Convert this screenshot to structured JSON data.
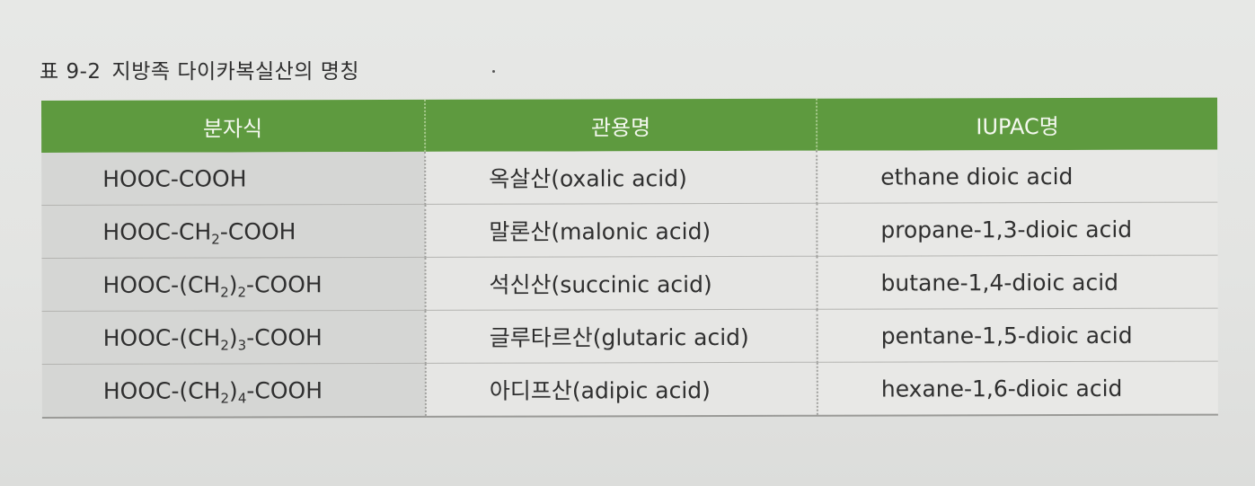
{
  "caption": {
    "number": "표 9-2",
    "title": "지방족 다이카복실산의 명칭"
  },
  "table": {
    "headers": [
      "분자식",
      "관용명",
      "IUPAC명"
    ],
    "rows": [
      {
        "formula": {
          "pre": "HOOC-COOH",
          "sub": "",
          "post": ""
        },
        "common": "옥살산(oxalic acid)",
        "iupac": "ethane dioic acid"
      },
      {
        "formula": {
          "pre": "HOOC-CH",
          "sub": "2",
          "post": "-COOH"
        },
        "common": "말론산(malonic acid)",
        "iupac": "propane-1,3-dioic acid"
      },
      {
        "formula": {
          "pre": "HOOC-(CH",
          "sub": "2",
          "post": ")2-COOH"
        },
        "common": "석신산(succinic acid)",
        "iupac": "butane-1,4-dioic acid"
      },
      {
        "formula": {
          "pre": "HOOC-(CH",
          "sub": "2",
          "post": ")3-COOH"
        },
        "common": "글루타르산(glutaric acid)",
        "iupac": "pentane-1,5-dioic acid"
      },
      {
        "formula": {
          "pre": "HOOC-(CH",
          "sub": "2",
          "post": ")4-COOH"
        },
        "common": "아디프산(adipic acid)",
        "iupac": "hexane-1,6-dioic acid"
      }
    ]
  }
}
